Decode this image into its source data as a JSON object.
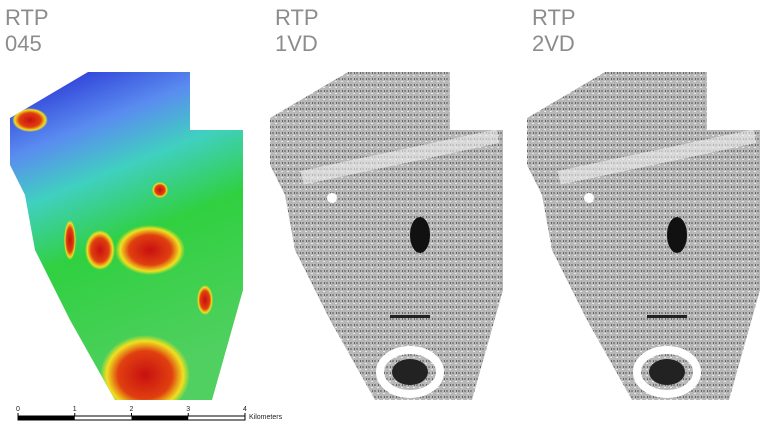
{
  "panels": [
    {
      "title": [
        "RTP",
        "045"
      ]
    },
    {
      "title": [
        "RTP",
        "1VD"
      ]
    },
    {
      "title": [
        "RTP",
        "2VD"
      ]
    }
  ],
  "scale_bar": {
    "ticks": [
      0,
      1,
      2,
      3,
      4
    ],
    "unit": "Kilometers"
  }
}
